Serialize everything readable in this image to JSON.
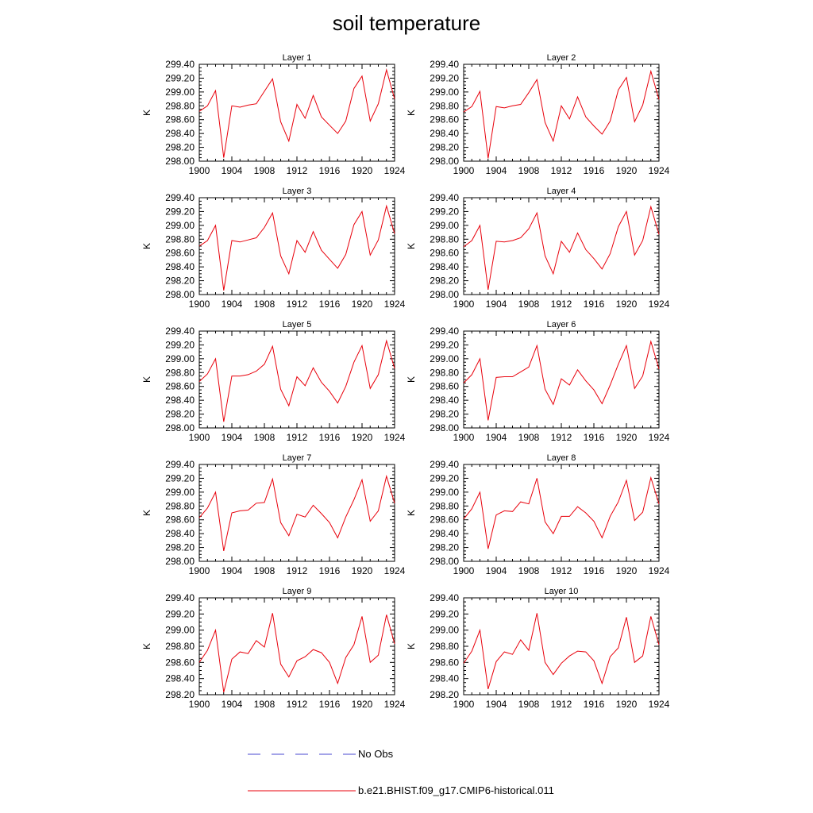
{
  "title": "soil temperature",
  "chart_data": {
    "type": "line",
    "x": [
      1900,
      1901,
      1902,
      1903,
      1904,
      1905,
      1906,
      1907,
      1908,
      1909,
      1910,
      1911,
      1912,
      1913,
      1914,
      1915,
      1916,
      1917,
      1918,
      1919,
      1920,
      1921,
      1922,
      1923,
      1924
    ],
    "xticks": [
      1900,
      1904,
      1908,
      1912,
      1916,
      1920,
      1924
    ],
    "xlim": [
      1900,
      1924
    ],
    "ylabel": "K",
    "line_color": "#e8000b",
    "panels": [
      {
        "title": "Layer 1",
        "ylim": [
          298.0,
          299.4
        ],
        "yticks": [
          "298.00",
          "298.20",
          "298.40",
          "298.60",
          "298.80",
          "299.00",
          "299.20",
          "299.40"
        ],
        "values": [
          298.72,
          298.8,
          299.02,
          298.05,
          298.8,
          298.78,
          298.81,
          298.83,
          299.01,
          299.19,
          298.57,
          298.29,
          298.82,
          298.62,
          298.95,
          298.64,
          298.52,
          298.4,
          298.58,
          299.05,
          299.23,
          298.58,
          298.83,
          299.32,
          298.9
        ]
      },
      {
        "title": "Layer 2",
        "ylim": [
          298.0,
          299.4
        ],
        "yticks": [
          "298.00",
          "298.20",
          "298.40",
          "298.60",
          "298.80",
          "299.00",
          "299.20",
          "299.40"
        ],
        "values": [
          298.71,
          298.79,
          299.01,
          298.04,
          298.79,
          298.77,
          298.8,
          298.82,
          298.99,
          299.18,
          298.56,
          298.29,
          298.8,
          298.61,
          298.93,
          298.64,
          298.51,
          298.39,
          298.58,
          299.03,
          299.21,
          298.57,
          298.81,
          299.3,
          298.89
        ]
      },
      {
        "title": "Layer 3",
        "ylim": [
          298.0,
          299.4
        ],
        "yticks": [
          "298.00",
          "298.20",
          "298.40",
          "298.60",
          "298.80",
          "299.00",
          "299.20",
          "299.40"
        ],
        "values": [
          298.7,
          298.78,
          299.0,
          298.06,
          298.78,
          298.76,
          298.79,
          298.82,
          298.97,
          299.18,
          298.56,
          298.3,
          298.78,
          298.61,
          298.91,
          298.64,
          298.51,
          298.38,
          298.58,
          299.01,
          299.2,
          298.57,
          298.79,
          299.28,
          298.88
        ]
      },
      {
        "title": "Layer 4",
        "ylim": [
          298.0,
          299.4
        ],
        "yticks": [
          "298.00",
          "298.20",
          "298.40",
          "298.60",
          "298.80",
          "299.00",
          "299.20",
          "299.40"
        ],
        "values": [
          298.69,
          298.78,
          299.0,
          298.07,
          298.77,
          298.76,
          298.78,
          298.82,
          298.95,
          299.18,
          298.56,
          298.3,
          298.77,
          298.61,
          298.89,
          298.65,
          298.52,
          298.37,
          298.59,
          298.98,
          299.2,
          298.57,
          298.78,
          299.27,
          298.87
        ]
      },
      {
        "title": "Layer 5",
        "ylim": [
          298.0,
          299.4
        ],
        "yticks": [
          "298.00",
          "298.20",
          "298.40",
          "298.60",
          "298.80",
          "299.00",
          "299.20",
          "299.40"
        ],
        "values": [
          298.67,
          298.78,
          299.0,
          298.09,
          298.75,
          298.75,
          298.77,
          298.82,
          298.92,
          299.18,
          298.56,
          298.32,
          298.74,
          298.61,
          298.87,
          298.66,
          298.53,
          298.36,
          298.6,
          298.95,
          299.19,
          298.57,
          298.77,
          299.26,
          298.86
        ]
      },
      {
        "title": "Layer 6",
        "ylim": [
          298.0,
          299.4
        ],
        "yticks": [
          "298.00",
          "298.20",
          "298.40",
          "298.60",
          "298.80",
          "299.00",
          "299.20",
          "299.40"
        ],
        "values": [
          298.65,
          298.77,
          299.0,
          298.11,
          298.73,
          298.74,
          298.74,
          298.81,
          298.88,
          299.19,
          298.56,
          298.34,
          298.71,
          298.62,
          298.84,
          298.68,
          298.55,
          298.35,
          298.62,
          298.92,
          299.19,
          298.57,
          298.75,
          299.25,
          298.85
        ]
      },
      {
        "title": "Layer 7",
        "ylim": [
          298.0,
          299.4
        ],
        "yticks": [
          "298.00",
          "298.20",
          "298.40",
          "298.60",
          "298.80",
          "299.00",
          "299.20",
          "299.40"
        ],
        "values": [
          298.63,
          298.77,
          299.0,
          298.15,
          298.7,
          298.73,
          298.74,
          298.84,
          298.85,
          299.19,
          298.56,
          298.37,
          298.68,
          298.64,
          298.81,
          298.69,
          298.56,
          298.34,
          298.64,
          298.89,
          299.18,
          298.58,
          298.73,
          299.23,
          298.84
        ]
      },
      {
        "title": "Layer 8",
        "ylim": [
          298.0,
          299.4
        ],
        "yticks": [
          "298.00",
          "298.20",
          "298.40",
          "298.60",
          "298.80",
          "299.00",
          "299.20",
          "299.40"
        ],
        "values": [
          298.61,
          298.76,
          299.0,
          298.18,
          298.67,
          298.73,
          298.72,
          298.86,
          298.83,
          299.2,
          298.57,
          298.4,
          298.65,
          298.65,
          298.79,
          298.7,
          298.58,
          298.34,
          298.65,
          298.86,
          299.17,
          298.59,
          298.71,
          299.21,
          298.83
        ]
      },
      {
        "title": "Layer 9",
        "ylim": [
          298.2,
          299.4
        ],
        "yticks": [
          "298.20",
          "298.40",
          "298.60",
          "298.80",
          "299.00",
          "299.20",
          "299.40"
        ],
        "values": [
          298.6,
          298.75,
          299.0,
          298.23,
          298.64,
          298.73,
          298.71,
          298.87,
          298.79,
          299.21,
          298.58,
          298.42,
          298.62,
          298.67,
          298.76,
          298.72,
          298.6,
          298.34,
          298.66,
          298.82,
          299.17,
          298.6,
          298.69,
          299.19,
          298.83
        ]
      },
      {
        "title": "Layer 10",
        "ylim": [
          298.2,
          299.4
        ],
        "yticks": [
          "298.20",
          "298.40",
          "298.60",
          "298.80",
          "299.00",
          "299.20",
          "299.40"
        ],
        "values": [
          298.59,
          298.74,
          299.0,
          298.27,
          298.61,
          298.73,
          298.7,
          298.88,
          298.75,
          299.21,
          298.6,
          298.45,
          298.59,
          298.68,
          298.74,
          298.73,
          298.62,
          298.34,
          298.67,
          298.78,
          299.16,
          298.6,
          298.68,
          299.17,
          298.82
        ]
      }
    ],
    "legend": [
      {
        "label": "No Obs",
        "style": "dashed",
        "color": "#4a4ad0"
      },
      {
        "label": "b.e21.BHIST.f09_g17.CMIP6-historical.011",
        "style": "solid",
        "color": "#e8000b"
      }
    ]
  }
}
